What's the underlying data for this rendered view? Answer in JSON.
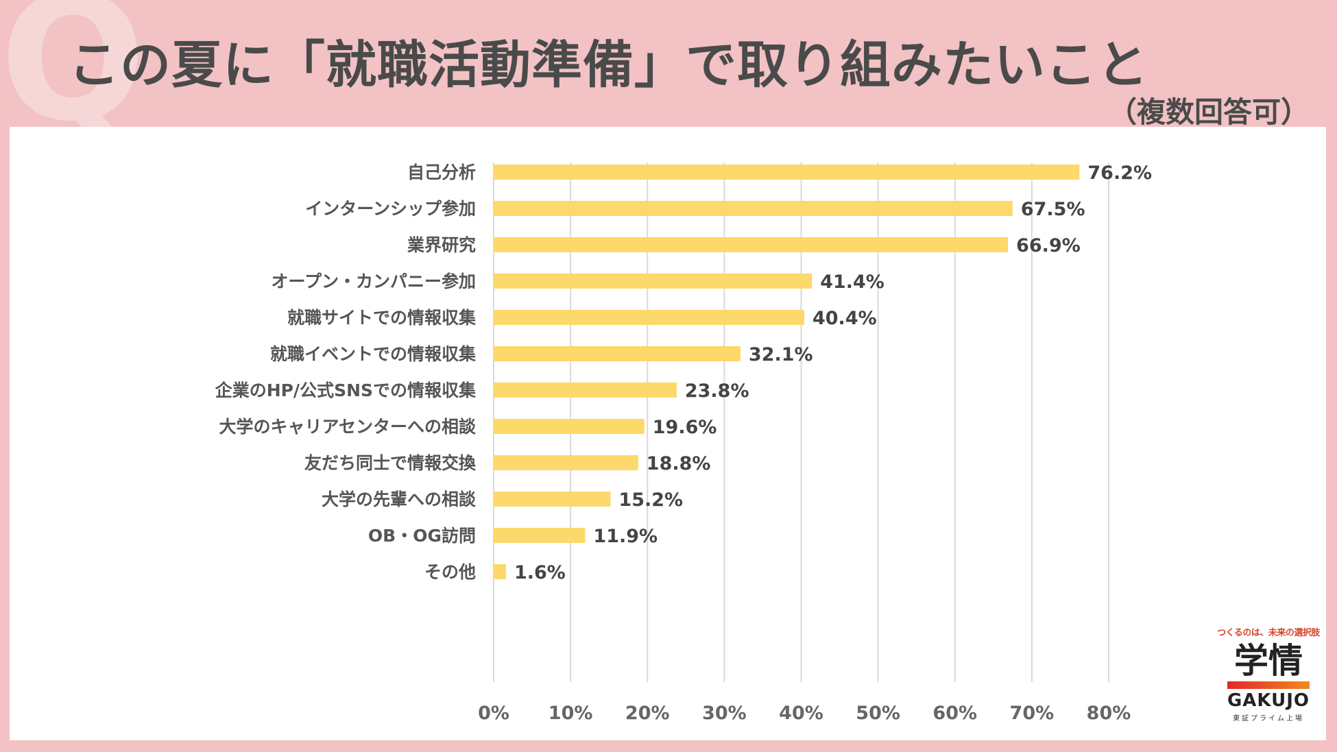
{
  "header": {
    "q_mark": "Q",
    "title": "この夏に「就職活動準備」で取り組みたいこと",
    "subtitle": "（複数回答可）"
  },
  "colors": {
    "bar": "#fdd86a",
    "grid": "#d9d9d9",
    "background": "#f2c2c4"
  },
  "chart_data": {
    "type": "bar",
    "orientation": "horizontal",
    "title": "この夏に「就職活動準備」で取り組みたいこと",
    "subtitle": "（複数回答可）",
    "categories": [
      "自己分析",
      "インターンシップ参加",
      "業界研究",
      "オープン・カンパニー参加",
      "就職サイトでの情報収集",
      "就職イベントでの情報収集",
      "企業のHP/公式SNSでの情報収集",
      "大学のキャリアセンターへの相談",
      "友だち同士で情報交換",
      "大学の先輩への相談",
      "OB・OG訪問",
      "その他"
    ],
    "values": [
      76.2,
      67.5,
      66.9,
      41.4,
      40.4,
      32.1,
      23.8,
      19.6,
      18.8,
      15.2,
      11.9,
      1.6
    ],
    "value_labels": [
      "76.2%",
      "67.5%",
      "66.9%",
      "41.4%",
      "40.4%",
      "32.1%",
      "23.8%",
      "19.6%",
      "18.8%",
      "15.2%",
      "11.9%",
      "1.6%"
    ],
    "xlim": [
      0,
      80
    ],
    "x_ticks": [
      0,
      10,
      20,
      30,
      40,
      50,
      60,
      70,
      80
    ],
    "x_tick_labels": [
      "0%",
      "10%",
      "20%",
      "30%",
      "40%",
      "50%",
      "60%",
      "70%",
      "80%"
    ],
    "xlabel": "",
    "ylabel": "",
    "grid": true
  },
  "logo": {
    "tagline": "つくるのは、未来の選択肢",
    "kanji": "学情",
    "wordmark": "GAKUJO",
    "listing": "東証プライム上場"
  }
}
